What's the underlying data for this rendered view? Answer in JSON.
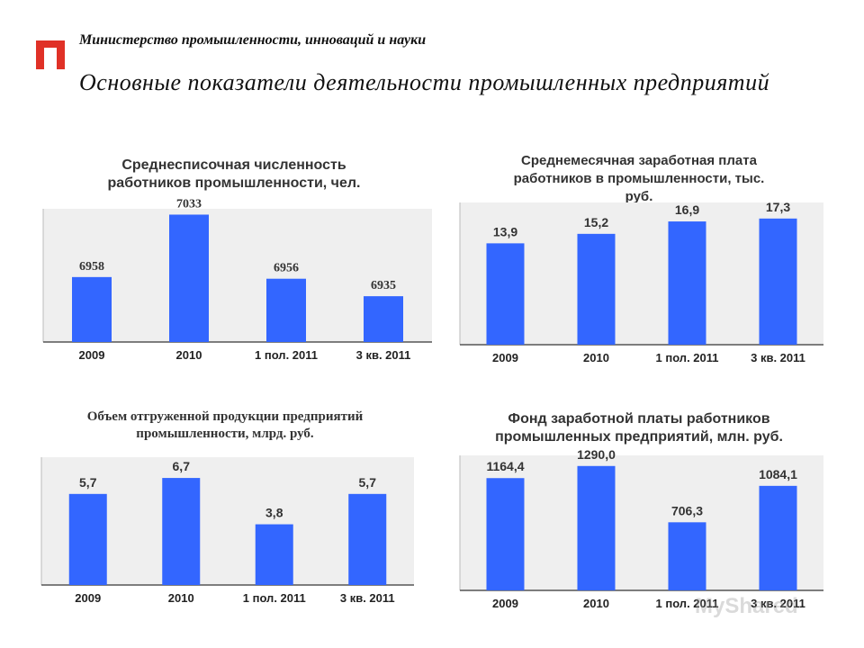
{
  "header": {
    "ministry": "Министерство промышленности, инноваций и науки",
    "title": "Основные показатели деятельности промышленных предприятий",
    "logo_color": "#e03127"
  },
  "colors": {
    "bar": "#3366ff",
    "plot_bg": "#efefef",
    "axis": "#555555",
    "text": "#333333"
  },
  "chart_data": [
    {
      "type": "bar",
      "title": "Среднесписочная численность работников промышленности, чел.",
      "categories": [
        "2009",
        "2010",
        "1 пол. 2011",
        "3 кв. 2011"
      ],
      "values": [
        6958,
        7033,
        6956,
        6935
      ],
      "value_labels": [
        "6958",
        "7033",
        "6956",
        "6935"
      ],
      "ylim": [
        6880,
        7040
      ],
      "grid": false
    },
    {
      "type": "bar",
      "title": "Среднемесячная заработная плата работников в промышленности, тыс. руб.",
      "categories": [
        "2009",
        "2010",
        "1 пол. 2011",
        "3 кв. 2011"
      ],
      "values": [
        13.9,
        15.2,
        16.9,
        17.3
      ],
      "value_labels": [
        "13,9",
        "15,2",
        "16,9",
        "17,3"
      ],
      "ylim": [
        0,
        19.5
      ],
      "grid": false
    },
    {
      "type": "bar",
      "title": "Объем отгруженной продукции предприятий промышленности, млрд. руб.",
      "categories": [
        "2009",
        "2010",
        "1 пол. 2011",
        "3 кв. 2011"
      ],
      "values": [
        5.7,
        6.7,
        3.8,
        5.7
      ],
      "value_labels": [
        "5,7",
        "6,7",
        "3,8",
        "5,7"
      ],
      "ylim": [
        0,
        8
      ],
      "grid": false
    },
    {
      "type": "bar",
      "title": "Фонд заработной платы работников промышленных предприятий, млн. руб.",
      "categories": [
        "2009",
        "2010",
        "1 пол. 2011",
        "3 кв. 2011"
      ],
      "values": [
        1164.4,
        1290.0,
        706.3,
        1084.1
      ],
      "value_labels": [
        "1164,4",
        "1290,0",
        "706,3",
        "1084,1"
      ],
      "ylim": [
        0,
        1400
      ],
      "grid": false
    }
  ],
  "watermark": "MyShared"
}
